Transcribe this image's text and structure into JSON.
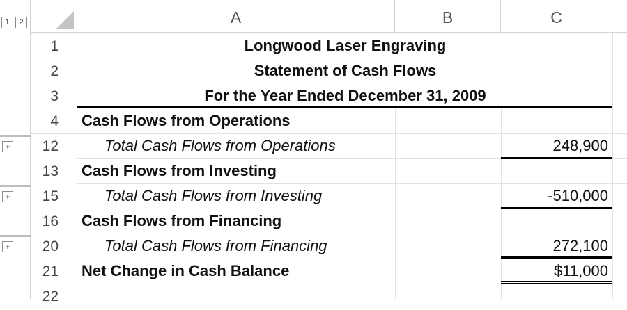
{
  "outline": {
    "levels": [
      "1",
      "2"
    ],
    "expand_symbol": "+"
  },
  "columns": [
    "A",
    "B",
    "C"
  ],
  "rows": [
    {
      "num": "1",
      "col_a": "Longwood Laser Engraving",
      "col_c": ""
    },
    {
      "num": "2",
      "col_a": "Statement of Cash Flows",
      "col_c": ""
    },
    {
      "num": "3",
      "col_a": "For the Year Ended December 31, 2009",
      "col_c": ""
    },
    {
      "num": "4",
      "col_a": "Cash Flows from Operations",
      "col_c": ""
    },
    {
      "num": "12",
      "col_a": "Total Cash Flows from Operations",
      "col_c": "248,900"
    },
    {
      "num": "13",
      "col_a": "Cash Flows from Investing",
      "col_c": ""
    },
    {
      "num": "15",
      "col_a": "Total Cash Flows from Investing",
      "col_c": "-510,000"
    },
    {
      "num": "16",
      "col_a": "Cash Flows from Financing",
      "col_c": ""
    },
    {
      "num": "20",
      "col_a": "Total Cash Flows from Financing",
      "col_c": "272,100"
    },
    {
      "num": "21",
      "col_a": "Net Change in Cash Balance",
      "col_c": "$11,000"
    },
    {
      "num": "22",
      "col_a": "",
      "col_c": ""
    }
  ]
}
